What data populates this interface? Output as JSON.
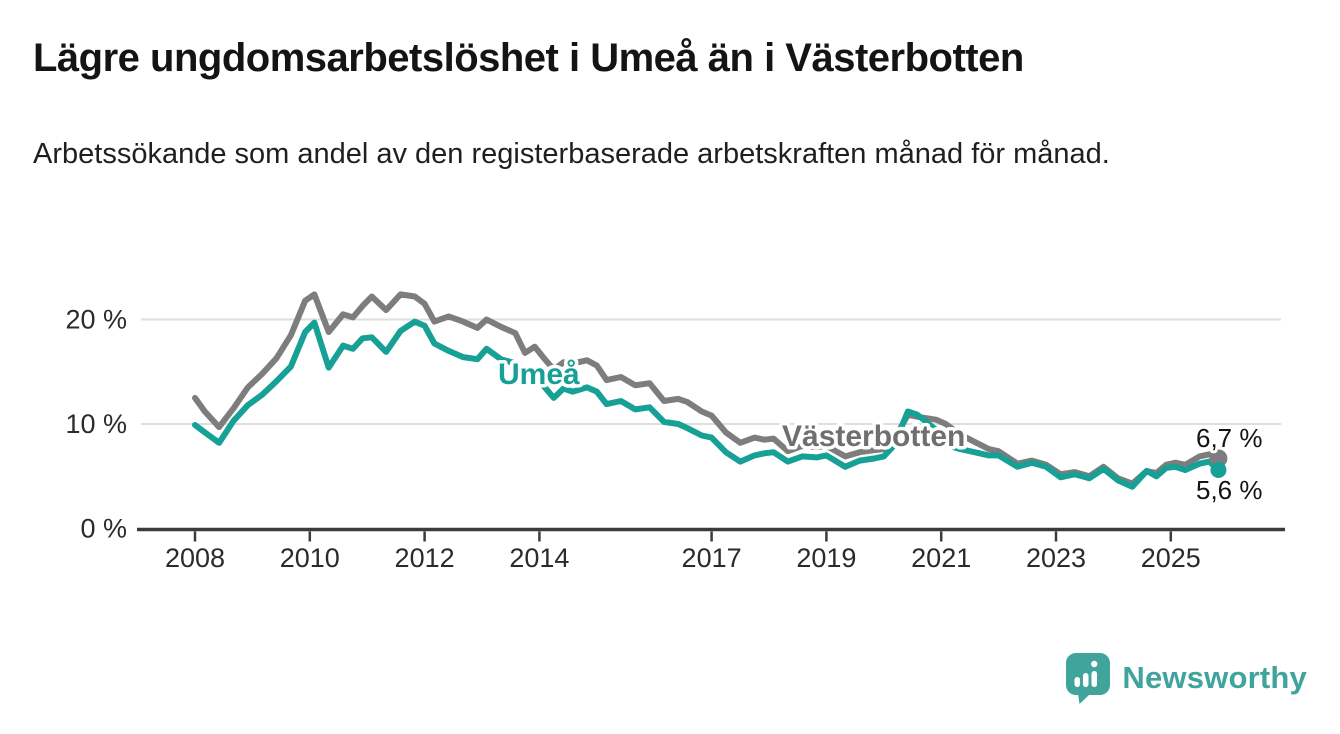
{
  "header": {
    "title": "Lägre ungdomsarbetslöshet i Umeå än i Västerbotten",
    "subtitle": "Arbetssökande som andel av den registerbaserade arbetskraften månad för månad."
  },
  "chart_data": {
    "type": "line",
    "title": "Lägre ungdomsarbetslöshet i Umeå än i Västerbotten",
    "subtitle": "Arbetssökande som andel av den registerbaserade arbetskraften månad för månad.",
    "ylabel": "",
    "xlabel": "",
    "ylim": [
      0,
      24
    ],
    "xlim": [
      2007.0,
      2026.3
    ],
    "grid": "horizontal",
    "legend": "inline-labels",
    "yticks": [
      {
        "value": 0,
        "label": "0 %"
      },
      {
        "value": 10,
        "label": "10 %"
      },
      {
        "value": 20,
        "label": "20 %"
      }
    ],
    "xticks": [
      {
        "value": 2008,
        "label": "2008"
      },
      {
        "value": 2010,
        "label": "2010"
      },
      {
        "value": 2012,
        "label": "2012"
      },
      {
        "value": 2014,
        "label": "2014"
      },
      {
        "value": 2017,
        "label": "2017"
      },
      {
        "value": 2019,
        "label": "2019"
      },
      {
        "value": 2021,
        "label": "2021"
      },
      {
        "value": 2023,
        "label": "2023"
      },
      {
        "value": 2025,
        "label": "2025"
      }
    ],
    "x": [
      2008.0,
      2008.17,
      2008.42,
      2008.67,
      2008.92,
      2009.17,
      2009.42,
      2009.67,
      2009.92,
      2010.08,
      2010.33,
      2010.58,
      2010.75,
      2010.92,
      2011.08,
      2011.33,
      2011.58,
      2011.83,
      2012.0,
      2012.17,
      2012.42,
      2012.67,
      2012.92,
      2013.08,
      2013.33,
      2013.58,
      2013.75,
      2013.92,
      2014.08,
      2014.25,
      2014.42,
      2014.58,
      2014.83,
      2015.0,
      2015.17,
      2015.42,
      2015.67,
      2015.92,
      2016.17,
      2016.42,
      2016.58,
      2016.83,
      2017.0,
      2017.25,
      2017.5,
      2017.75,
      2017.92,
      2018.08,
      2018.33,
      2018.58,
      2018.83,
      2019.0,
      2019.33,
      2019.58,
      2019.83,
      2020.0,
      2020.17,
      2020.42,
      2020.58,
      2020.92,
      2021.08,
      2021.33,
      2021.58,
      2021.83,
      2022.0,
      2022.33,
      2022.58,
      2022.83,
      2023.08,
      2023.33,
      2023.58,
      2023.83,
      2024.08,
      2024.33,
      2024.58,
      2024.75,
      2024.92,
      2025.08,
      2025.25,
      2025.5,
      2025.67,
      2025.83
    ],
    "series": [
      {
        "name": "Västerbotten",
        "color": "#7d7d7d",
        "label_color": "#6f6f6f",
        "end_label": "6,7 %",
        "end_value": 6.7,
        "values": [
          12.5,
          11.2,
          9.7,
          11.5,
          13.5,
          14.8,
          16.3,
          18.5,
          21.8,
          22.4,
          18.8,
          20.5,
          20.2,
          21.3,
          22.2,
          20.9,
          22.4,
          22.2,
          21.5,
          19.8,
          20.3,
          19.8,
          19.2,
          20.0,
          19.3,
          18.7,
          16.8,
          17.4,
          16.3,
          15.2,
          15.9,
          15.8,
          16.1,
          15.6,
          14.2,
          14.5,
          13.7,
          13.9,
          12.2,
          12.4,
          12.1,
          11.2,
          10.8,
          9.2,
          8.2,
          8.7,
          8.5,
          8.6,
          7.4,
          7.9,
          7.8,
          7.9,
          6.9,
          7.3,
          7.5,
          7.6,
          8.4,
          10.9,
          10.7,
          10.4,
          10.0,
          9.0,
          8.3,
          7.6,
          7.4,
          6.2,
          6.5,
          6.1,
          5.2,
          5.4,
          5.0,
          5.9,
          4.8,
          4.3,
          5.5,
          5.3,
          6.1,
          6.3,
          6.1,
          6.9,
          7.1,
          6.7
        ]
      },
      {
        "name": "Umeå",
        "color": "#16a096",
        "label_color": "#16a096",
        "end_label": "5,6 %",
        "end_value": 5.6,
        "values": [
          9.9,
          9.2,
          8.2,
          10.3,
          11.8,
          12.8,
          14.1,
          15.5,
          18.8,
          19.7,
          15.4,
          17.5,
          17.2,
          18.2,
          18.3,
          16.9,
          18.9,
          19.8,
          19.4,
          17.7,
          17.0,
          16.4,
          16.2,
          17.2,
          16.2,
          15.8,
          14.3,
          14.8,
          13.6,
          12.5,
          13.4,
          13.1,
          13.5,
          13.1,
          11.9,
          12.2,
          11.4,
          11.6,
          10.2,
          10.0,
          9.6,
          8.9,
          8.7,
          7.3,
          6.4,
          7.0,
          7.2,
          7.3,
          6.4,
          6.9,
          6.8,
          7.0,
          5.9,
          6.5,
          6.7,
          6.9,
          7.9,
          11.2,
          10.9,
          9.4,
          8.0,
          7.6,
          7.3,
          7.0,
          7.0,
          5.9,
          6.3,
          5.9,
          4.9,
          5.2,
          4.8,
          5.7,
          4.6,
          4.0,
          5.5,
          5.0,
          5.8,
          5.9,
          5.6,
          6.2,
          6.4,
          5.6
        ]
      }
    ]
  },
  "footer": {
    "brand": "Newsworthy",
    "brand_color": "#40a49c",
    "logo_icon": "speech-bubble-bar-chart-icon"
  }
}
